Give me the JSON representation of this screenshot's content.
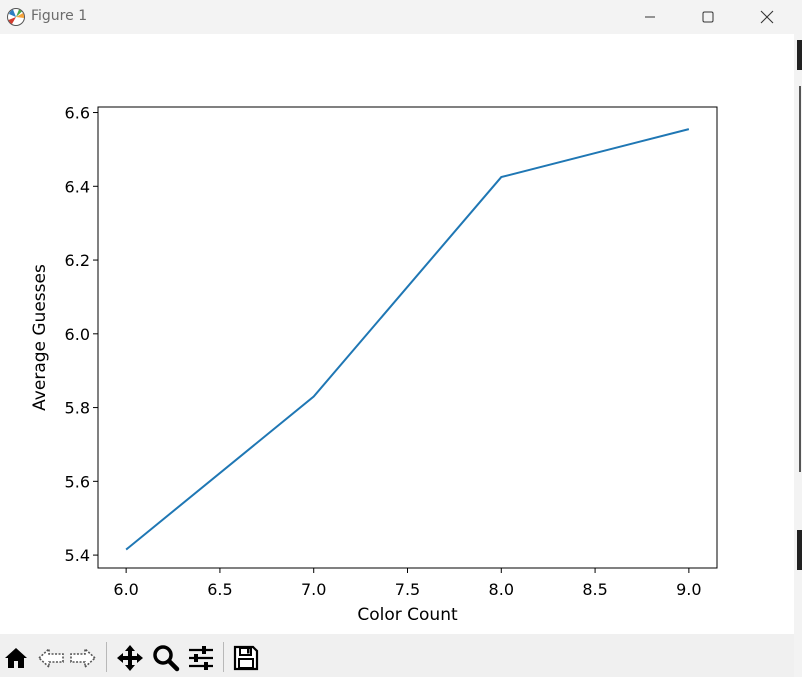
{
  "window": {
    "title": "Figure 1"
  },
  "toolbar": {
    "tools": [
      "home-icon",
      "back-arrow-icon",
      "forward-arrow-icon",
      "pan-icon",
      "zoom-icon",
      "configure-subplots-icon",
      "save-icon"
    ]
  },
  "chart_data": {
    "type": "line",
    "title": "",
    "xlabel": "Color Count",
    "ylabel": "Average Guesses",
    "x": [
      6.0,
      7.0,
      8.0,
      9.0
    ],
    "series": [
      {
        "values": [
          5.415,
          5.83,
          6.425,
          6.555
        ],
        "color": "#1f77b4"
      }
    ],
    "xlim": [
      5.85,
      9.15
    ],
    "ylim": [
      5.365,
      6.615
    ],
    "xticks": [
      "6.0",
      "6.5",
      "7.0",
      "7.5",
      "8.0",
      "8.5",
      "9.0"
    ],
    "yticks": [
      "5.4",
      "5.6",
      "5.8",
      "6.0",
      "6.2",
      "6.4",
      "6.6"
    ],
    "grid": false,
    "legend": "none"
  }
}
